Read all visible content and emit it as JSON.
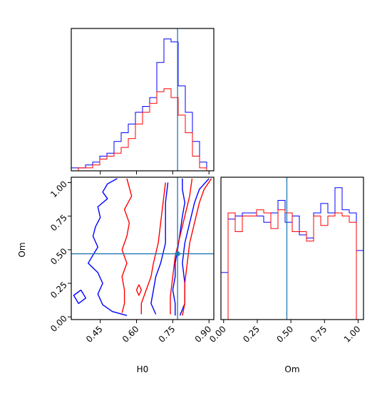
{
  "chart_data": [
    {
      "type": "histogram",
      "panel": "H0-marginal",
      "xlim": [
        0.33,
        0.92
      ],
      "truth": 0.77,
      "bins": [
        0.33,
        0.3595,
        0.389,
        0.4185,
        0.448,
        0.4775,
        0.507,
        0.5365,
        0.566,
        0.5955,
        0.625,
        0.6545,
        0.684,
        0.7135,
        0.743,
        0.7725,
        0.802,
        0.8315,
        0.861,
        0.8905,
        0.92
      ],
      "series": [
        {
          "color": "#0000ff",
          "counts": [
            1,
            1,
            2,
            3,
            5,
            6,
            10,
            13,
            16,
            20,
            22,
            25,
            37,
            45,
            44,
            29,
            20,
            10,
            3,
            0
          ]
        },
        {
          "color": "#ff0000",
          "counts": [
            0,
            1,
            1,
            2,
            4,
            5,
            6,
            8,
            11,
            16,
            20,
            23,
            27,
            28,
            25,
            19,
            13,
            5,
            1,
            0
          ]
        }
      ]
    },
    {
      "type": "contour",
      "panel": "H0-Om-2d",
      "xlim": [
        0.33,
        0.92
      ],
      "ylim": [
        -0.02,
        1.04
      ],
      "xlabel": "H0",
      "ylabel": "Om",
      "xticks": [
        "0.45",
        "0.60",
        "0.75",
        "0.90"
      ],
      "yticks": [
        "0.00",
        "0.25",
        "0.50",
        "0.75",
        "1.00"
      ],
      "xtick_values": [
        0.45,
        0.6,
        0.75,
        0.9
      ],
      "ytick_values": [
        0.0,
        0.25,
        0.5,
        0.75,
        1.0
      ],
      "truth": [
        0.77,
        0.47
      ],
      "series": [
        {
          "color": "#0000ff",
          "contours": [
            [
              [
                0.52,
                1.03
              ],
              [
                0.48,
                0.99
              ],
              [
                0.46,
                0.93
              ],
              [
                0.48,
                0.88
              ],
              [
                0.44,
                0.82
              ],
              [
                0.45,
                0.74
              ],
              [
                0.43,
                0.67
              ],
              [
                0.42,
                0.6
              ],
              [
                0.44,
                0.52
              ],
              [
                0.42,
                0.46
              ],
              [
                0.4,
                0.4
              ],
              [
                0.44,
                0.33
              ],
              [
                0.46,
                0.25
              ],
              [
                0.44,
                0.17
              ],
              [
                0.46,
                0.09
              ],
              [
                0.5,
                0.04
              ],
              [
                0.56,
                0.01
              ]
            ],
            [
              [
                0.37,
                0.2
              ],
              [
                0.39,
                0.14
              ],
              [
                0.36,
                0.1
              ],
              [
                0.34,
                0.16
              ],
              [
                0.37,
                0.2
              ]
            ],
            [
              [
                0.68,
                0.02
              ],
              [
                0.66,
                0.1
              ],
              [
                0.67,
                0.2
              ],
              [
                0.68,
                0.3
              ],
              [
                0.7,
                0.4
              ],
              [
                0.72,
                0.55
              ],
              [
                0.72,
                0.7
              ],
              [
                0.72,
                0.85
              ],
              [
                0.73,
                1.0
              ]
            ],
            [
              [
                0.79,
                1.03
              ],
              [
                0.79,
                0.95
              ],
              [
                0.8,
                0.85
              ],
              [
                0.79,
                0.75
              ],
              [
                0.78,
                0.62
              ],
              [
                0.77,
                0.5
              ],
              [
                0.76,
                0.4
              ],
              [
                0.76,
                0.3
              ],
              [
                0.75,
                0.2
              ],
              [
                0.76,
                0.1
              ],
              [
                0.76,
                0.01
              ]
            ],
            [
              [
                0.9,
                1.03
              ],
              [
                0.86,
                0.95
              ],
              [
                0.84,
                0.85
              ],
              [
                0.82,
                0.7
              ],
              [
                0.8,
                0.55
              ],
              [
                0.79,
                0.4
              ],
              [
                0.8,
                0.25
              ],
              [
                0.8,
                0.1
              ],
              [
                0.78,
                0.01
              ]
            ]
          ]
        },
        {
          "color": "#ff0000",
          "contours": [
            [
              [
                0.56,
                1.03
              ],
              [
                0.58,
                0.9
              ],
              [
                0.55,
                0.8
              ],
              [
                0.57,
                0.7
              ],
              [
                0.56,
                0.6
              ],
              [
                0.54,
                0.5
              ],
              [
                0.56,
                0.4
              ],
              [
                0.54,
                0.3
              ],
              [
                0.55,
                0.2
              ],
              [
                0.55,
                0.1
              ],
              [
                0.54,
                0.03
              ]
            ],
            [
              [
                0.62,
                0.02
              ],
              [
                0.62,
                0.1
              ],
              [
                0.64,
                0.2
              ],
              [
                0.66,
                0.3
              ],
              [
                0.67,
                0.4
              ],
              [
                0.69,
                0.55
              ],
              [
                0.7,
                0.7
              ],
              [
                0.71,
                0.85
              ],
              [
                0.72,
                1.0
              ]
            ],
            [
              [
                0.74,
                0.02
              ],
              [
                0.74,
                0.15
              ],
              [
                0.75,
                0.3
              ],
              [
                0.76,
                0.45
              ],
              [
                0.78,
                0.6
              ],
              [
                0.8,
                0.75
              ],
              [
                0.82,
                0.9
              ],
              [
                0.83,
                1.03
              ]
            ],
            [
              [
                0.91,
                1.03
              ],
              [
                0.88,
                0.95
              ],
              [
                0.86,
                0.85
              ],
              [
                0.84,
                0.7
              ],
              [
                0.82,
                0.55
              ],
              [
                0.81,
                0.4
              ],
              [
                0.8,
                0.25
              ],
              [
                0.8,
                0.1
              ],
              [
                0.79,
                0.01
              ]
            ],
            [
              [
                0.61,
                0.24
              ],
              [
                0.62,
                0.2
              ],
              [
                0.61,
                0.16
              ],
              [
                0.6,
                0.2
              ],
              [
                0.61,
                0.24
              ]
            ]
          ]
        }
      ]
    },
    {
      "type": "histogram",
      "panel": "Om-marginal",
      "xlim": [
        -0.02,
        1.04
      ],
      "xlabel": "Om",
      "xticks": [
        "0.00",
        "0.25",
        "0.50",
        "0.75",
        "1.00"
      ],
      "xtick_values": [
        0.0,
        0.25,
        0.5,
        0.75,
        1.0
      ],
      "truth": 0.47,
      "bins": [
        -0.02,
        0.033,
        0.086,
        0.139,
        0.192,
        0.245,
        0.298,
        0.351,
        0.404,
        0.457,
        0.51,
        0.563,
        0.616,
        0.669,
        0.722,
        0.775,
        0.828,
        0.881,
        0.934,
        0.987,
        1.04
      ],
      "series": [
        {
          "color": "#0000ff",
          "counts": [
            15,
            32,
            33,
            34,
            34,
            33,
            31,
            34,
            38,
            31,
            33,
            27,
            26,
            34,
            37,
            34,
            42,
            35,
            34,
            22
          ]
        },
        {
          "color": "#ff0000",
          "counts": [
            0,
            34,
            28,
            33,
            33,
            35,
            34,
            29,
            35,
            34,
            28,
            28,
            25,
            33,
            30,
            33,
            34,
            33,
            31,
            0
          ]
        }
      ]
    }
  ]
}
